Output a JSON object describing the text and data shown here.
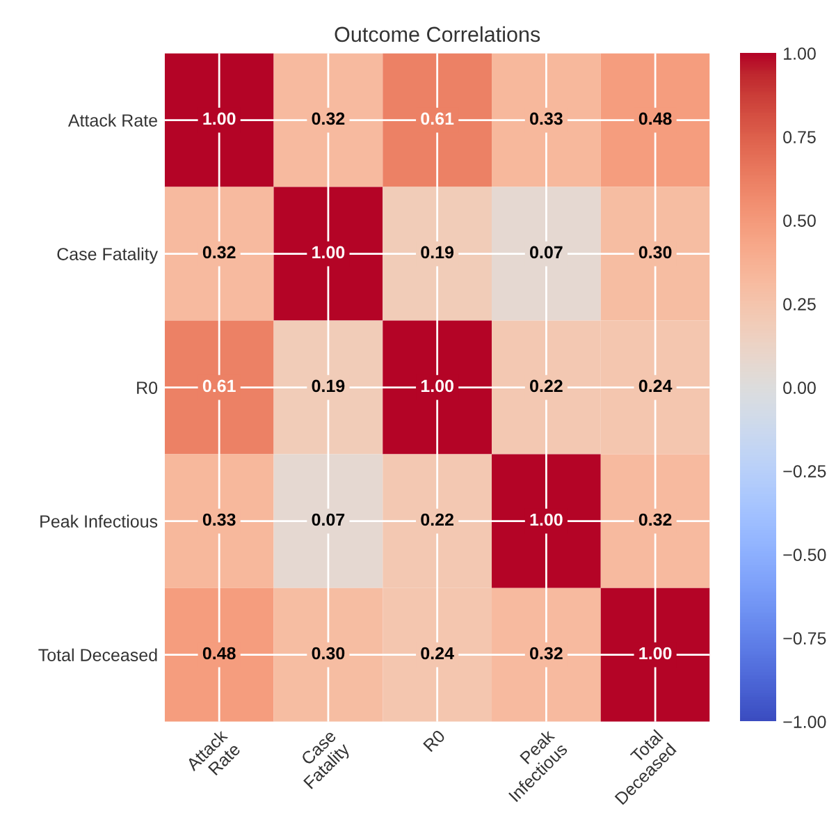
{
  "chart_data": {
    "type": "heatmap",
    "title": "Outcome Correlations",
    "categories": [
      "Attack\nRate",
      "Case\nFatality",
      "R0",
      "Peak\nInfectious",
      "Total\nDeceased"
    ],
    "y_categories": [
      "Attack Rate",
      "Case Fatality",
      "R0",
      "Peak Infectious",
      "Total Deceased"
    ],
    "cells": [
      [
        1.0,
        0.32,
        0.61,
        0.33,
        0.48
      ],
      [
        0.32,
        1.0,
        0.19,
        0.07,
        0.3
      ],
      [
        0.61,
        0.19,
        1.0,
        0.22,
        0.24
      ],
      [
        0.33,
        0.07,
        0.22,
        1.0,
        0.32
      ],
      [
        0.48,
        0.3,
        0.24,
        0.32,
        1.0
      ]
    ],
    "cell_labels": [
      [
        "1.00",
        "0.32",
        "0.61",
        "0.33",
        "0.48"
      ],
      [
        "0.32",
        "1.00",
        "0.19",
        "0.07",
        "0.30"
      ],
      [
        "0.61",
        "0.19",
        "1.00",
        "0.22",
        "0.24"
      ],
      [
        "0.33",
        "0.07",
        "0.22",
        "1.00",
        "0.32"
      ],
      [
        "0.48",
        "0.30",
        "0.24",
        "0.32",
        "1.00"
      ]
    ],
    "clim": [
      -1,
      1
    ],
    "cticks": [
      {
        "value": 1,
        "label": "1.00"
      },
      {
        "value": 0.75,
        "label": "0.75"
      },
      {
        "value": 0.5,
        "label": "0.50"
      },
      {
        "value": 0.25,
        "label": "0.25"
      },
      {
        "value": 0,
        "label": "0.00"
      },
      {
        "value": -0.25,
        "label": "−0.25"
      },
      {
        "value": -0.5,
        "label": "−0.50"
      },
      {
        "value": -0.75,
        "label": "−0.75"
      },
      {
        "value": -1,
        "label": "−1.00"
      }
    ],
    "data_labels": true,
    "grid": true
  }
}
